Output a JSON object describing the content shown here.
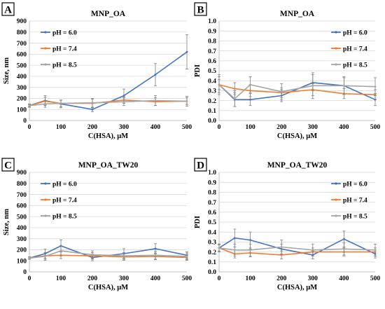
{
  "colors": {
    "ph60": "#4472C4",
    "ph74": "#ED7D31",
    "ph85": "#A5A5A5",
    "grid": "#D9D9D9",
    "axis": "#BFBFBF",
    "error": "#7F7F7F"
  },
  "chart_data": [
    {
      "panel": "A",
      "type": "line",
      "title": "MNP_OA",
      "xlabel": "C(HSA), μM",
      "ylabel": "Size, nm",
      "x": [
        0,
        50,
        100,
        200,
        300,
        400,
        500
      ],
      "xticks": [
        "0",
        "100",
        "200",
        "300",
        "400",
        "500"
      ],
      "xlim": [
        0,
        500
      ],
      "ylim": [
        0,
        900
      ],
      "yticks": [
        "0",
        "100",
        "200",
        "300",
        "400",
        "500",
        "600",
        "700",
        "800",
        "900"
      ],
      "grid": true,
      "legend": "top-left",
      "series": [
        {
          "name": "pH = 6.0",
          "color": "#4472C4",
          "values": [
            135,
            180,
            150,
            100,
            225,
            415,
            620
          ],
          "errors": [
            15,
            45,
            35,
            20,
            60,
            100,
            155
          ]
        },
        {
          "name": "pH = 7.4",
          "color": "#ED7D31",
          "values": [
            135,
            175,
            155,
            155,
            185,
            170,
            175
          ],
          "errors": [
            10,
            35,
            30,
            40,
            30,
            35,
            30
          ]
        },
        {
          "name": "pH = 8.5",
          "color": "#A5A5A5",
          "values": [
            135,
            150,
            155,
            160,
            170,
            180,
            175
          ],
          "errors": [
            10,
            30,
            30,
            40,
            35,
            45,
            45
          ]
        }
      ]
    },
    {
      "panel": "B",
      "type": "line",
      "title": "MNP_OA",
      "xlabel": "C(HSA), μM",
      "ylabel": "PDI",
      "x": [
        0,
        50,
        100,
        200,
        300,
        400,
        500
      ],
      "xticks": [
        "0",
        "100",
        "200",
        "300",
        "400",
        "500"
      ],
      "xlim": [
        0,
        500
      ],
      "ylim": [
        0,
        1
      ],
      "yticks": [
        "0.0",
        "0.1",
        "0.2",
        "0.3",
        "0.4",
        "0.5",
        "0.6",
        "0.7",
        "0.8",
        "0.9",
        "1.0"
      ],
      "grid": true,
      "legend": "top-right",
      "series": [
        {
          "name": "pH = 6.0",
          "color": "#4472C4",
          "values": [
            0.36,
            0.21,
            0.21,
            0.25,
            0.38,
            0.35,
            0.21
          ],
          "errors": [
            0.08,
            0.07,
            0.06,
            0.06,
            0.08,
            0.08,
            0.06
          ]
        },
        {
          "name": "pH = 7.4",
          "color": "#ED7D31",
          "values": [
            0.36,
            0.32,
            0.3,
            0.28,
            0.31,
            0.27,
            0.26
          ],
          "errors": [
            0.05,
            0.06,
            0.06,
            0.05,
            0.06,
            0.05,
            0.05
          ]
        },
        {
          "name": "pH = 8.5",
          "color": "#A5A5A5",
          "values": [
            0.36,
            0.22,
            0.36,
            0.29,
            0.35,
            0.35,
            0.34
          ],
          "errors": [
            0.1,
            0.08,
            0.08,
            0.08,
            0.13,
            0.09,
            0.09
          ]
        }
      ]
    },
    {
      "panel": "C",
      "type": "line",
      "title": "MNP_OA_TW20",
      "xlabel": "C(HSA), μM",
      "ylabel": "Size, nm",
      "x": [
        0,
        50,
        100,
        200,
        300,
        400,
        500
      ],
      "xticks": [
        "0",
        "100",
        "200",
        "300",
        "400",
        "500"
      ],
      "xlim": [
        0,
        500
      ],
      "ylim": [
        0,
        900
      ],
      "yticks": [
        "0",
        "100",
        "200",
        "300",
        "400",
        "500",
        "600",
        "700",
        "800",
        "900"
      ],
      "grid": true,
      "legend": "top-left",
      "series": [
        {
          "name": "pH = 6.0",
          "color": "#4472C4",
          "values": [
            125,
            165,
            235,
            130,
            165,
            210,
            150
          ],
          "errors": [
            10,
            40,
            55,
            30,
            45,
            45,
            30
          ]
        },
        {
          "name": "pH = 7.4",
          "color": "#ED7D31",
          "values": [
            125,
            145,
            150,
            145,
            135,
            140,
            130
          ],
          "errors": [
            10,
            30,
            30,
            30,
            30,
            30,
            25
          ]
        },
        {
          "name": "pH = 8.5",
          "color": "#A5A5A5",
          "values": [
            125,
            140,
            190,
            155,
            145,
            150,
            140
          ],
          "errors": [
            10,
            35,
            45,
            35,
            30,
            35,
            30
          ]
        }
      ]
    },
    {
      "panel": "D",
      "type": "line",
      "title": "MNP_OA_TW20",
      "xlabel": "C(HSA), μM",
      "ylabel": "PDI",
      "x": [
        0,
        50,
        100,
        200,
        300,
        400,
        500
      ],
      "xticks": [
        "0",
        "100",
        "200",
        "300",
        "400",
        "500"
      ],
      "xlim": [
        0,
        500
      ],
      "ylim": [
        0,
        1
      ],
      "yticks": [
        "0.0",
        "0.1",
        "0.2",
        "0.3",
        "0.4",
        "0.5",
        "0.6",
        "0.7",
        "0.8",
        "0.9",
        "1.0"
      ],
      "grid": true,
      "legend": "top-right",
      "series": [
        {
          "name": "pH = 6.0",
          "color": "#4472C4",
          "values": [
            0.24,
            0.34,
            0.32,
            0.23,
            0.17,
            0.33,
            0.18
          ],
          "errors": [
            0.04,
            0.09,
            0.08,
            0.05,
            0.04,
            0.08,
            0.04
          ]
        },
        {
          "name": "pH = 7.4",
          "color": "#ED7D31",
          "values": [
            0.24,
            0.18,
            0.19,
            0.17,
            0.2,
            0.2,
            0.2
          ],
          "errors": [
            0.03,
            0.04,
            0.04,
            0.04,
            0.04,
            0.04,
            0.04
          ]
        },
        {
          "name": "pH = 8.5",
          "color": "#A5A5A5",
          "values": [
            0.24,
            0.22,
            0.22,
            0.25,
            0.22,
            0.23,
            0.22
          ],
          "errors": [
            0.04,
            0.06,
            0.06,
            0.07,
            0.06,
            0.06,
            0.06
          ]
        }
      ]
    }
  ]
}
